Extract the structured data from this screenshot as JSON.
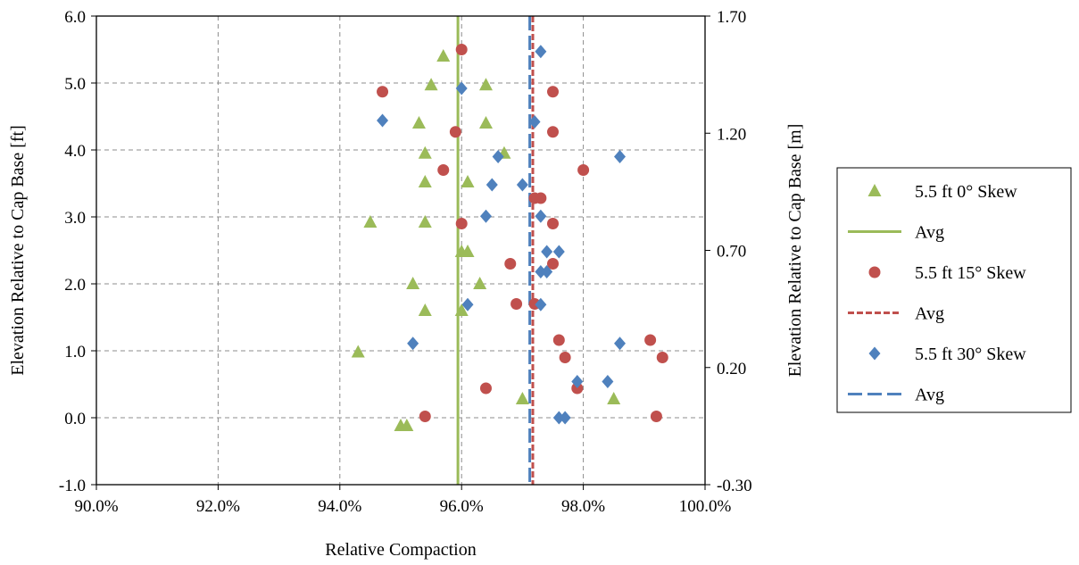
{
  "chart_data": {
    "type": "scatter",
    "xlabel": "Relative Compaction",
    "ylabel": "Elevation Relative to Cap Base [ft]",
    "y2label": "Elevation Relative to Cap Base [m]",
    "xlim": [
      0.9,
      1.0
    ],
    "ylim": [
      -1.0,
      6.0
    ],
    "y2lim": [
      -0.3,
      1.7
    ],
    "x_ticks": [
      "90.0%",
      "92.0%",
      "94.0%",
      "96.0%",
      "98.0%",
      "100.0%"
    ],
    "y_ticks": [
      "-1.0",
      "0.0",
      "1.0",
      "2.0",
      "3.0",
      "4.0",
      "5.0",
      "6.0"
    ],
    "y2_ticks": [
      "-0.30",
      "0.20",
      "0.70",
      "1.20",
      "1.70"
    ],
    "grid": true,
    "legend_position": "right",
    "series": [
      {
        "name": "5.5 ft 0° Skew",
        "marker": "triangle",
        "color": "#9bbb59",
        "points": [
          [
            0.957,
            5.4
          ],
          [
            0.955,
            4.97
          ],
          [
            0.964,
            4.97
          ],
          [
            0.953,
            4.4
          ],
          [
            0.964,
            4.4
          ],
          [
            0.954,
            3.95
          ],
          [
            0.967,
            3.95
          ],
          [
            0.954,
            3.52
          ],
          [
            0.961,
            3.52
          ],
          [
            0.945,
            2.92
          ],
          [
            0.954,
            2.92
          ],
          [
            0.96,
            2.48
          ],
          [
            0.961,
            2.48
          ],
          [
            0.952,
            2.0
          ],
          [
            0.963,
            2.0
          ],
          [
            0.954,
            1.6
          ],
          [
            0.96,
            1.6
          ],
          [
            0.943,
            0.98
          ],
          [
            0.97,
            0.28
          ],
          [
            0.985,
            0.28
          ],
          [
            0.95,
            -0.12
          ],
          [
            0.951,
            -0.12
          ]
        ]
      },
      {
        "name": "Avg",
        "kind": "avg-line",
        "line_style": "solid",
        "color": "#9bbb59",
        "x": 0.9594
      },
      {
        "name": "5.5 ft 15° Skew",
        "marker": "circle",
        "color": "#c0504d",
        "points": [
          [
            0.96,
            5.5
          ],
          [
            0.947,
            4.87
          ],
          [
            0.975,
            4.87
          ],
          [
            0.959,
            4.27
          ],
          [
            0.975,
            4.27
          ],
          [
            0.957,
            3.7
          ],
          [
            0.98,
            3.7
          ],
          [
            0.972,
            3.28
          ],
          [
            0.973,
            3.28
          ],
          [
            0.96,
            2.9
          ],
          [
            0.975,
            2.9
          ],
          [
            0.968,
            2.3
          ],
          [
            0.975,
            2.3
          ],
          [
            0.969,
            1.7
          ],
          [
            0.972,
            1.7
          ],
          [
            0.976,
            1.16
          ],
          [
            0.991,
            1.16
          ],
          [
            0.977,
            0.9
          ],
          [
            0.993,
            0.9
          ],
          [
            0.964,
            0.44
          ],
          [
            0.979,
            0.44
          ],
          [
            0.954,
            0.02
          ],
          [
            0.992,
            0.02
          ]
        ]
      },
      {
        "name": "Avg",
        "kind": "avg-line",
        "line_style": "short-dash",
        "color": "#c0504d",
        "x": 0.9717
      },
      {
        "name": "5.5 ft 30° Skew",
        "marker": "diamond",
        "color": "#4f81bd",
        "points": [
          [
            0.973,
            5.47
          ],
          [
            0.96,
            4.92
          ],
          [
            0.947,
            4.44
          ],
          [
            0.972,
            4.42
          ],
          [
            0.966,
            3.9
          ],
          [
            0.986,
            3.9
          ],
          [
            0.965,
            3.48
          ],
          [
            0.97,
            3.48
          ],
          [
            0.964,
            3.01
          ],
          [
            0.973,
            3.01
          ],
          [
            0.974,
            2.48
          ],
          [
            0.976,
            2.48
          ],
          [
            0.973,
            2.18
          ],
          [
            0.974,
            2.18
          ],
          [
            0.961,
            1.69
          ],
          [
            0.973,
            1.69
          ],
          [
            0.952,
            1.11
          ],
          [
            0.986,
            1.11
          ],
          [
            0.979,
            0.54
          ],
          [
            0.984,
            0.54
          ],
          [
            0.976,
            0.0
          ],
          [
            0.977,
            0.0
          ]
        ]
      },
      {
        "name": "Avg",
        "kind": "avg-line",
        "line_style": "long-dash",
        "color": "#4f81bd",
        "x": 0.9712
      }
    ]
  }
}
